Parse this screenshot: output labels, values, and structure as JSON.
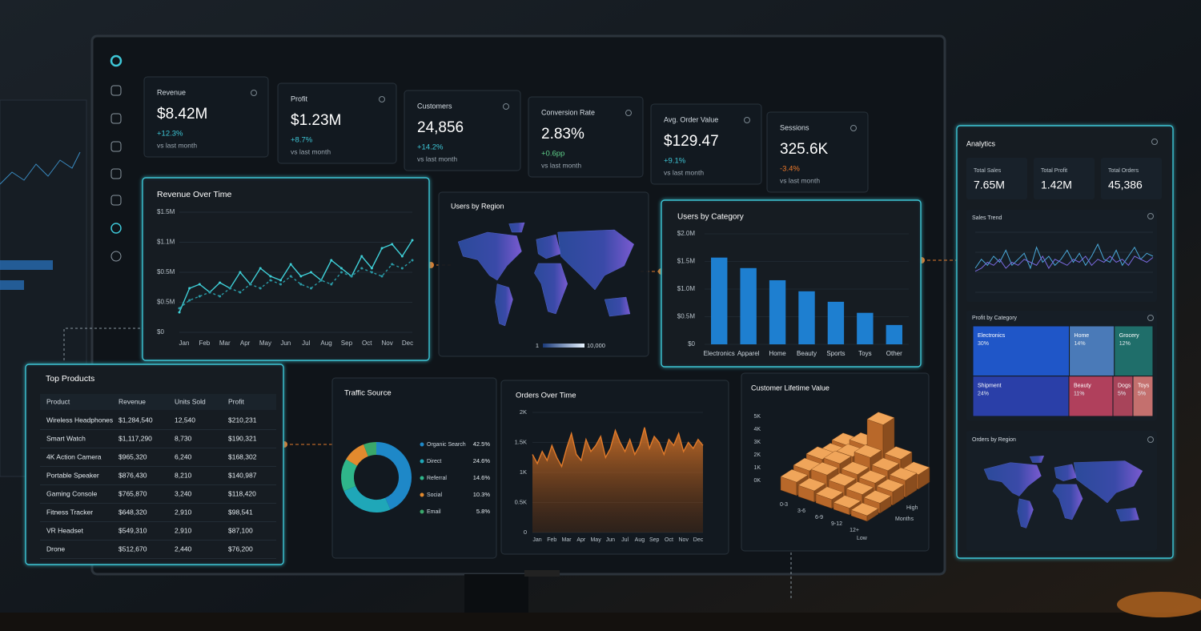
{
  "kpis": [
    {
      "label": "Revenue",
      "value": "$8.42M",
      "change": "+12.3%",
      "change_color": "#3ec6d6",
      "note": "vs last month"
    },
    {
      "label": "Profit",
      "value": "$1.23M",
      "change": "+8.7%",
      "change_color": "#3ec6d6",
      "note": "vs last month"
    },
    {
      "label": "Customers",
      "value": "24,856",
      "change": "+14.2%",
      "change_color": "#3ec6d6",
      "note": "vs last month"
    },
    {
      "label": "Conversion Rate",
      "value": "2.83%",
      "change": "+0.6pp",
      "change_color": "#5fd08a",
      "note": "vs last month"
    },
    {
      "label": "Avg. Order Value",
      "value": "$129.47",
      "change": "+9.1%",
      "change_color": "#3ec6d6",
      "note": "vs last month"
    },
    {
      "label": "Sessions",
      "value": "325.6K",
      "change": "-3.4%",
      "change_color": "#f07a2a",
      "note": "vs last month"
    }
  ],
  "revenue_over_time": {
    "title": "Revenue Over Time",
    "y_axis_labels": [
      "$1.5M",
      "$1.1M",
      "$0.5M",
      "$0.5M",
      "$0"
    ],
    "ylim": [
      0,
      1.5
    ],
    "x_axis_labels": [
      "Jan",
      "Feb",
      "Mar",
      "Apr",
      "May",
      "Jun",
      "Jul",
      "Aug",
      "Sep",
      "Oct",
      "Nov",
      "Dec"
    ],
    "series": [
      {
        "color": "#3fd0d8",
        "values": [
          0.25,
          0.55,
          0.6,
          0.5,
          0.62,
          0.55,
          0.75,
          0.6,
          0.8,
          0.7,
          0.65,
          0.85,
          0.7,
          0.75,
          0.65,
          0.9,
          0.8,
          0.7,
          0.95,
          0.8,
          1.05,
          1.1,
          0.95,
          1.15
        ]
      },
      {
        "color": "#2a9aa6",
        "values": [
          0.3,
          0.4,
          0.45,
          0.5,
          0.45,
          0.55,
          0.5,
          0.6,
          0.55,
          0.65,
          0.6,
          0.7,
          0.6,
          0.55,
          0.65,
          0.6,
          0.75,
          0.7,
          0.8,
          0.75,
          0.7,
          0.85,
          0.8,
          0.9
        ]
      }
    ]
  },
  "users_by_region": {
    "title": "Users by Region",
    "legend_labels": [
      "1",
      "10,000"
    ]
  },
  "users_by_category": {
    "title": "Users by Category",
    "color": "#1e7fd0",
    "categories": [
      "Electronics",
      "Apparel",
      "Home",
      "Beauty",
      "Sports",
      "Toys",
      "Other"
    ],
    "values": [
      1.57,
      1.38,
      1.16,
      0.96,
      0.77,
      0.57,
      0.35
    ],
    "ylim": [
      0,
      2.0
    ],
    "yticks": [
      {
        "value": 0,
        "label": "$0"
      },
      {
        "value": 0.5,
        "label": "$0.5M"
      },
      {
        "value": 1.0,
        "label": "$1.0M"
      },
      {
        "value": 1.5,
        "label": "$1.5M"
      },
      {
        "value": 2.0,
        "label": "$2.0M"
      }
    ]
  },
  "top_products": {
    "title": "Top Products",
    "columns": [
      "Product",
      "Revenue",
      "Units Sold",
      "Profit"
    ],
    "rows": [
      [
        "Wireless Headphones",
        "$1,284,540",
        "12,540",
        "$210,231"
      ],
      [
        "Smart Watch",
        "$1,117,290",
        "8,730",
        "$190,321"
      ],
      [
        "4K Action Camera",
        "$965,320",
        "6,240",
        "$168,302"
      ],
      [
        "Portable Speaker",
        "$876,430",
        "8,210",
        "$140,987"
      ],
      [
        "Gaming Console",
        "$765,870",
        "3,240",
        "$118,420"
      ],
      [
        "Fitness Tracker",
        "$648,320",
        "2,910",
        "$98,541"
      ],
      [
        "VR Headset",
        "$549,310",
        "2,910",
        "$87,100"
      ],
      [
        "Drone",
        "$512,670",
        "2,440",
        "$76,200"
      ]
    ]
  },
  "traffic_source": {
    "title": "Traffic Source",
    "categories": [
      "Organic Search",
      "Direct",
      "Referral",
      "Social",
      "Email"
    ],
    "values": [
      42.5,
      24.6,
      14.6,
      10.3,
      5.8
    ],
    "value_labels": [
      "42.5%",
      "24.6%",
      "14.6%",
      "10.3%",
      "5.8%"
    ],
    "colors": [
      "#1e88c8",
      "#1fa7b8",
      "#2fb68a",
      "#e38a2e",
      "#3aa86b"
    ]
  },
  "orders_over_time": {
    "title": "Orders Over Time",
    "color": "#e07a2a",
    "ylim": [
      0,
      2000
    ],
    "yticks": [
      0,
      {
        "value": 500,
        "label": "0.5K"
      },
      {
        "value": 1000,
        "label": "1K"
      },
      {
        "value": 1500,
        "label": "1.5K"
      },
      {
        "value": 2000,
        "label": "2K"
      }
    ],
    "x_axis_labels": [
      "Jan",
      "Feb",
      "Mar",
      "Apr",
      "May",
      "Jun",
      "Jul",
      "Aug",
      "Sep",
      "Oct",
      "Nov",
      "Dec"
    ],
    "values": [
      1300,
      1150,
      1350,
      1200,
      1450,
      1250,
      1100,
      1400,
      1650,
      1300,
      1200,
      1550,
      1350,
      1450,
      1600,
      1250,
      1400,
      1700,
      1500,
      1350,
      1550,
      1300,
      1450,
      1750,
      1400,
      1600,
      1500,
      1300,
      1550,
      1450,
      1650,
      1350,
      1500,
      1400,
      1550,
      1450
    ]
  },
  "customer_lifetime_value": {
    "title": "Customer Lifetime Value",
    "y_axis_labels": [
      "5K",
      "4K",
      "3K",
      "2K",
      "1K",
      "0K"
    ],
    "x_axis_labels": [
      "0-3",
      "3-6",
      "6-9",
      "9-12",
      "12+"
    ],
    "axis_titles": [
      "High",
      "Months",
      "Low"
    ],
    "heights": [
      [
        1.2,
        1.5,
        1.8,
        1.4,
        1.6
      ],
      [
        1.0,
        1.7,
        2.0,
        1.9,
        2.2
      ],
      [
        0.8,
        1.3,
        1.6,
        2.4,
        4.6
      ],
      [
        0.6,
        1.1,
        1.4,
        1.8,
        2.1
      ],
      [
        0.5,
        0.9,
        1.2,
        1.5,
        1.3
      ]
    ]
  },
  "analytics": {
    "title": "Analytics",
    "stats": [
      {
        "label": "Total Sales",
        "value": "7.65M"
      },
      {
        "label": "Total Profit",
        "value": "1.42M"
      },
      {
        "label": "Total Orders",
        "value": "45,386"
      }
    ],
    "sales_trend": {
      "title": "Sales Trend",
      "ylim": [
        0,
        100
      ],
      "series": [
        {
          "color": "#4aa8d8",
          "values": [
            40,
            55,
            45,
            60,
            50,
            70,
            45,
            55,
            65,
            40,
            75,
            50,
            60,
            45,
            55,
            70,
            50,
            65,
            45,
            60,
            80,
            55,
            50,
            70,
            45,
            60,
            75,
            55,
            65,
            60
          ]
        },
        {
          "color": "#7a6ae0",
          "values": [
            35,
            40,
            50,
            45,
            55,
            40,
            50,
            45,
            55,
            50,
            45,
            60,
            40,
            55,
            50,
            45,
            55,
            50,
            60,
            45,
            55,
            50,
            60,
            50,
            55,
            45,
            60,
            55,
            50,
            58
          ]
        }
      ]
    },
    "profit_by_category": {
      "title": "Profit by Category",
      "items": [
        {
          "label": "Electronics",
          "value": 30,
          "value_label": "30%",
          "color": "#1f56c8"
        },
        {
          "label": "Home",
          "value": 14,
          "value_label": "14%",
          "color": "#4a7ab8"
        },
        {
          "label": "Grocery",
          "value": 12,
          "value_label": "12%",
          "color": "#1f6e6a"
        },
        {
          "label": "Shipment",
          "value": 24,
          "value_label": "24%",
          "color": "#2a3fa8"
        },
        {
          "label": "Beauty",
          "value": 11,
          "value_label": "11%",
          "color": "#b0405c"
        },
        {
          "label": "Dogs",
          "value": 5,
          "value_label": "5%",
          "color": "#a8445a"
        },
        {
          "label": "Toys",
          "value": 5,
          "value_label": "5%",
          "color": "#c4706e"
        }
      ]
    },
    "orders_by_region": {
      "title": "Orders by Region"
    }
  }
}
